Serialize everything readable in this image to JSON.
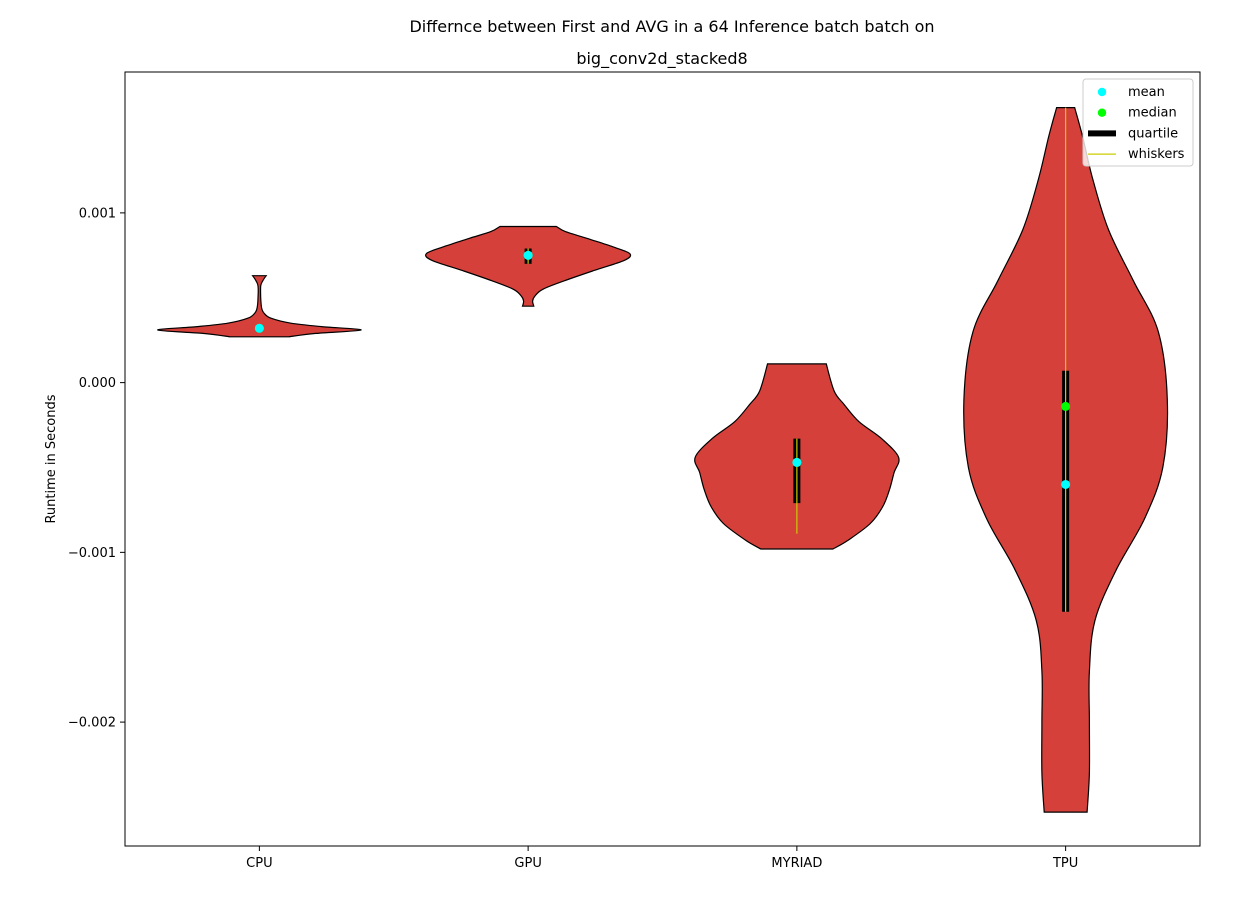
{
  "chart_data": {
    "type": "violin",
    "title_line1": "Differnce between First and AVG in a 64 Inference batch batch on",
    "title_line2": "big_conv2d_stacked8",
    "xlabel": "",
    "ylabel": "Runtime in Seconds",
    "categories": [
      "CPU",
      "GPU",
      "MYRIAD",
      "TPU"
    ],
    "ylim": [
      -0.00273,
      0.00183
    ],
    "yticks": [
      {
        "value": 0.001,
        "label": "0.001"
      },
      {
        "value": 0.0,
        "label": "0.000"
      },
      {
        "value": -0.001,
        "label": "−0.001"
      },
      {
        "value": -0.002,
        "label": "−0.002"
      }
    ],
    "legend": {
      "placement": "top-right",
      "entries": [
        {
          "label": "mean",
          "kind": "dot",
          "color": "#00ffff"
        },
        {
          "label": "median",
          "kind": "dot",
          "color": "#00ff00"
        },
        {
          "label": "quartile",
          "kind": "bar",
          "color": "#000000"
        },
        {
          "label": "whiskers",
          "kind": "line",
          "color": "#cccc00"
        }
      ]
    },
    "colors": {
      "violin_fill": "#d5403a",
      "violin_edge": "#000000",
      "mean": "#00ffff",
      "median": "#00ff00",
      "quartile": "#000000",
      "whisker": "#cccc00"
    },
    "violins": [
      {
        "category": "CPU",
        "min": 0.00027,
        "max": 0.00063,
        "q1": 0.00031,
        "q3": 0.00033,
        "median": 0.00032,
        "mean": 0.00032,
        "whisker_low": 0.00031,
        "whisker_high": 0.00033,
        "profile": [
          [
            0.00027,
            0.26
          ],
          [
            0.00029,
            0.5
          ],
          [
            0.00031,
            0.9
          ],
          [
            0.00033,
            0.55
          ],
          [
            0.00035,
            0.28
          ],
          [
            0.00038,
            0.1
          ],
          [
            0.00041,
            0.04
          ],
          [
            0.00044,
            0.02
          ],
          [
            0.0005,
            0.012
          ],
          [
            0.00057,
            0.012
          ],
          [
            0.0006,
            0.03
          ],
          [
            0.00063,
            0.06
          ]
        ]
      },
      {
        "category": "GPU",
        "min": 0.00045,
        "max": 0.00092,
        "q1": 0.0007,
        "q3": 0.00079,
        "median": 0.00075,
        "mean": 0.00075,
        "whisker_low": 0.0007,
        "whisker_high": 0.00079,
        "profile": [
          [
            0.00045,
            0.05
          ],
          [
            0.00048,
            0.04
          ],
          [
            0.00051,
            0.06
          ],
          [
            0.00055,
            0.13
          ],
          [
            0.0006,
            0.32
          ],
          [
            0.00066,
            0.58
          ],
          [
            0.00072,
            0.85
          ],
          [
            0.00076,
            0.9
          ],
          [
            0.0008,
            0.75
          ],
          [
            0.00085,
            0.52
          ],
          [
            0.00089,
            0.33
          ],
          [
            0.00092,
            0.25
          ]
        ]
      },
      {
        "category": "MYRIAD",
        "min": -0.00098,
        "max": 0.00011,
        "q1": -0.00071,
        "q3": -0.00033,
        "median": -0.00047,
        "mean": -0.00047,
        "whisker_low": -0.00089,
        "whisker_high": -0.00033,
        "profile": [
          [
            -0.00098,
            0.32
          ],
          [
            -0.00093,
            0.45
          ],
          [
            -0.00083,
            0.65
          ],
          [
            -0.00073,
            0.76
          ],
          [
            -0.00063,
            0.82
          ],
          [
            -0.00053,
            0.86
          ],
          [
            -0.00044,
            0.9
          ],
          [
            -0.00033,
            0.75
          ],
          [
            -0.00023,
            0.55
          ],
          [
            -0.00013,
            0.42
          ],
          [
            -5e-05,
            0.33
          ],
          [
            0.00011,
            0.26
          ]
        ]
      },
      {
        "category": "TPU",
        "min": -0.00253,
        "max": 0.00162,
        "q1": -0.00135,
        "q3": 7e-05,
        "median": -0.00014,
        "mean": -0.0006,
        "whisker_low": -0.00135,
        "whisker_high": 0.00162,
        "profile": [
          [
            -0.00253,
            0.19
          ],
          [
            -0.0023,
            0.21
          ],
          [
            -0.002,
            0.21
          ],
          [
            -0.0017,
            0.21
          ],
          [
            -0.0014,
            0.26
          ],
          [
            -0.0011,
            0.45
          ],
          [
            -0.0008,
            0.7
          ],
          [
            -0.0005,
            0.86
          ],
          [
            -0.0001,
            0.9
          ],
          [
            0.0003,
            0.82
          ],
          [
            0.0006,
            0.6
          ],
          [
            0.0009,
            0.38
          ],
          [
            0.0012,
            0.24
          ],
          [
            0.00145,
            0.15
          ],
          [
            0.00162,
            0.08
          ]
        ]
      }
    ]
  }
}
